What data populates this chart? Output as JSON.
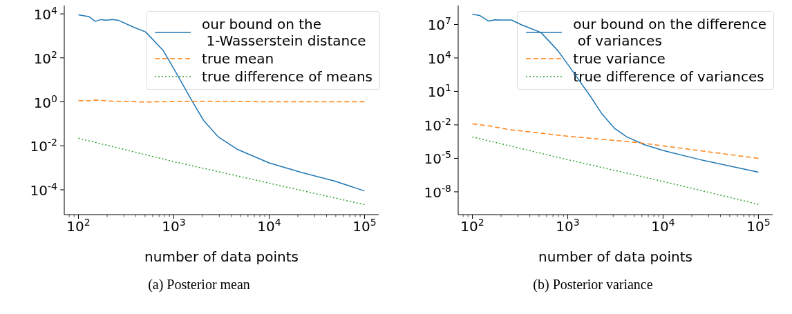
{
  "chart_data": [
    {
      "type": "line",
      "title": "(a) Posterior mean",
      "xlabel": "number of data points",
      "log": "xy",
      "legend": "top right",
      "marker": "none",
      "grid": false,
      "xlim": [
        71,
        141000
      ],
      "ylim": [
        7.4e-06,
        24000
      ],
      "xticks": [
        {
          "value": 80,
          "label": null
        },
        {
          "value": 90,
          "label": null
        },
        {
          "value": 100,
          "label": "10$^{2}$"
        },
        {
          "value": 200,
          "label": null
        },
        {
          "value": 300,
          "label": null
        },
        {
          "value": 400,
          "label": null
        },
        {
          "value": 500,
          "label": null
        },
        {
          "value": 600,
          "label": null
        },
        {
          "value": 700,
          "label": null
        },
        {
          "value": 800,
          "label": null
        },
        {
          "value": 900,
          "label": null
        },
        {
          "value": 1000,
          "label": "10$^{3}$"
        },
        {
          "value": 2000,
          "label": null
        },
        {
          "value": 3000,
          "label": null
        },
        {
          "value": 4000,
          "label": null
        },
        {
          "value": 5000,
          "label": null
        },
        {
          "value": 6000,
          "label": null
        },
        {
          "value": 7000,
          "label": null
        },
        {
          "value": 8000,
          "label": null
        },
        {
          "value": 9000,
          "label": null
        },
        {
          "value": 10000,
          "label": "10$^{4}$"
        },
        {
          "value": 20000,
          "label": null
        },
        {
          "value": 30000,
          "label": null
        },
        {
          "value": 40000,
          "label": null
        },
        {
          "value": 50000,
          "label": null
        },
        {
          "value": 60000,
          "label": null
        },
        {
          "value": 70000,
          "label": null
        },
        {
          "value": 80000,
          "label": null
        },
        {
          "value": 90000,
          "label": null
        },
        {
          "value": 100000,
          "label": "10$^{5}$"
        }
      ],
      "yticks": [
        {
          "value": 0.0001,
          "label": "10$^{-4}$"
        },
        {
          "value": 0.01,
          "label": "10$^{-2}$"
        },
        {
          "value": 1,
          "label": "10$^{0}$"
        },
        {
          "value": 100,
          "label": "10$^{2}$"
        },
        {
          "value": 10000,
          "label": "10$^{4}$"
        }
      ],
      "series": [
        {
          "name": "our bound on the\n 1-Wasserstein distance",
          "color": "#1f77b4",
          "line_style": "solid",
          "x": [
            100,
            128,
            150,
            172,
            197,
            227,
            262,
            370,
            507,
            778,
            1096,
            1503,
            2061,
            2911,
            4603,
            9977,
            21630,
            48310,
            100000
          ],
          "values": [
            9100,
            7600,
            4600,
            5500,
            5200,
            5600,
            5100,
            2600,
            1500,
            210,
            16,
            1.4,
            0.14,
            0.026,
            0.007,
            0.00167,
            0.00062,
            0.00025,
            8.9e-05
          ]
        },
        {
          "name": "true mean",
          "color": "#ff7f0e",
          "line_style": "dashed",
          "x": [
            100,
            130,
            150,
            250,
            500,
            1000,
            2000,
            10000,
            100000
          ],
          "values": [
            1.14,
            1.12,
            1.2,
            1.05,
            0.98,
            1.03,
            1.06,
            1.0,
            1.0
          ]
        },
        {
          "name": "true difference of means",
          "color": "#2ca02c",
          "line_style": "dotted",
          "x": [
            100,
            1000,
            10000,
            100000
          ],
          "values": [
            0.022,
            0.0019,
            0.0002,
            2.1e-05
          ]
        }
      ]
    },
    {
      "type": "line",
      "title": "(b) Posterior variance",
      "xlabel": "number of data points",
      "log": "xy",
      "legend": "top right",
      "marker": "none",
      "grid": false,
      "xlim": [
        71,
        141000
      ],
      "ylim": [
        9e-11,
        500000000
      ],
      "xticks": [
        {
          "value": 80,
          "label": null
        },
        {
          "value": 90,
          "label": null
        },
        {
          "value": 100,
          "label": "10$^{2}$"
        },
        {
          "value": 200,
          "label": null
        },
        {
          "value": 300,
          "label": null
        },
        {
          "value": 400,
          "label": null
        },
        {
          "value": 500,
          "label": null
        },
        {
          "value": 600,
          "label": null
        },
        {
          "value": 700,
          "label": null
        },
        {
          "value": 800,
          "label": null
        },
        {
          "value": 900,
          "label": null
        },
        {
          "value": 1000,
          "label": "10$^{3}$"
        },
        {
          "value": 2000,
          "label": null
        },
        {
          "value": 3000,
          "label": null
        },
        {
          "value": 4000,
          "label": null
        },
        {
          "value": 5000,
          "label": null
        },
        {
          "value": 6000,
          "label": null
        },
        {
          "value": 7000,
          "label": null
        },
        {
          "value": 8000,
          "label": null
        },
        {
          "value": 9000,
          "label": null
        },
        {
          "value": 10000,
          "label": "10$^{4}$"
        },
        {
          "value": 20000,
          "label": null
        },
        {
          "value": 30000,
          "label": null
        },
        {
          "value": 40000,
          "label": null
        },
        {
          "value": 50000,
          "label": null
        },
        {
          "value": 60000,
          "label": null
        },
        {
          "value": 70000,
          "label": null
        },
        {
          "value": 80000,
          "label": null
        },
        {
          "value": 90000,
          "label": null
        },
        {
          "value": 100000,
          "label": "10$^{5}$"
        }
      ],
      "yticks": [
        {
          "value": 1e-08,
          "label": "10$^{-8}$"
        },
        {
          "value": 1e-05,
          "label": "10$^{-5}$"
        },
        {
          "value": 0.01,
          "label": "10$^{-2}$"
        },
        {
          "value": 10,
          "label": "10$^{1}$"
        },
        {
          "value": 10000,
          "label": "10$^{4}$"
        },
        {
          "value": 10000000,
          "label": "10$^{7}$"
        }
      ],
      "series": [
        {
          "name": "our bound on the difference\n of variances",
          "color": "#1f77b4",
          "line_style": "solid",
          "x": [
            100,
            120,
            148,
            172,
            204,
            257,
            331,
            525,
            794,
            1202,
            1738,
            2291,
            3090,
            4169,
            6310,
            10120,
            24550,
            100000
          ],
          "values": [
            80000000,
            63000000,
            20000000,
            26000000,
            25000000,
            25000000,
            9000000,
            1900000,
            42000,
            300,
            3.4,
            0.093,
            0.005,
            0.00083,
            0.00017,
            4.9e-05,
            7.6e-06,
            5.8e-07
          ]
        },
        {
          "name": "true variance",
          "color": "#ff7f0e",
          "line_style": "dashed",
          "x": [
            100,
            151,
            245,
            525,
            955,
            5623,
            100000
          ],
          "values": [
            0.0123,
            0.008,
            0.0037,
            0.0018,
            0.001,
            0.00025,
            1e-05
          ]
        },
        {
          "name": "true difference of variances",
          "color": "#2ca02c",
          "line_style": "dotted",
          "x": [
            100,
            1000,
            10000,
            100000
          ],
          "values": [
            0.00083,
            7.6e-06,
            8.5e-08,
            7.6e-10
          ]
        }
      ]
    }
  ]
}
